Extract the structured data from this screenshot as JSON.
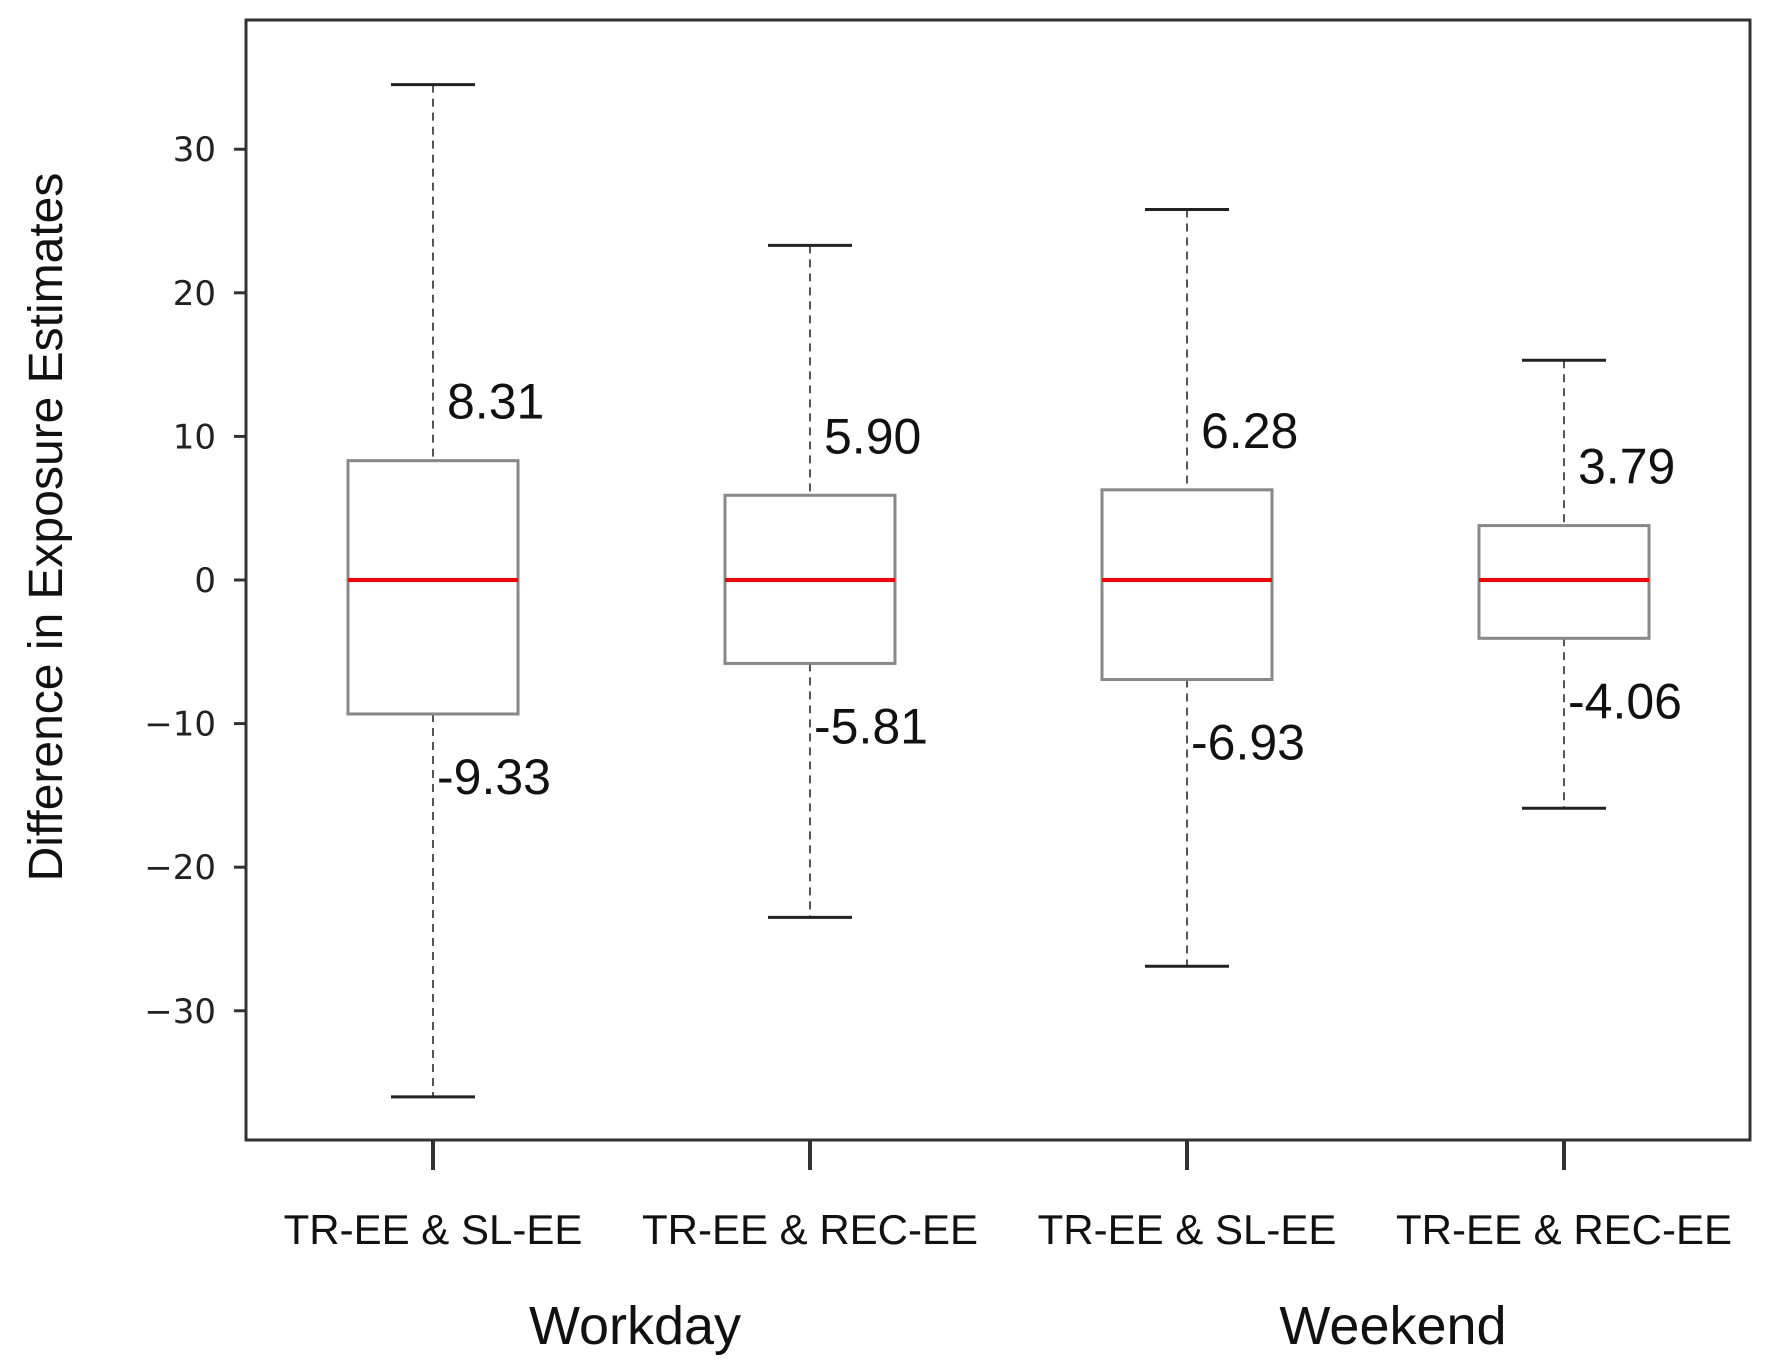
{
  "chart_data": {
    "type": "box",
    "ylabel": "Difference in Exposure Estimates",
    "ylim": [
      -39,
      39
    ],
    "yticks": [
      -30,
      -20,
      -10,
      0,
      10,
      20,
      30
    ],
    "ytick_labels": [
      "−30",
      "−20",
      "−10",
      "0",
      "10",
      "20",
      "30"
    ],
    "categories": [
      "TR-EE & SL-EE",
      "TR-EE & REC-EE",
      "TR-EE & SL-EE",
      "TR-EE & REC-EE"
    ],
    "groups": [
      "Workday",
      "Weekend"
    ],
    "boxes": [
      {
        "whisker_low": -36,
        "q1": -9.33,
        "median": 0,
        "q3": 8.31,
        "whisker_high": 34.5,
        "q3_label": "8.31",
        "q1_label": "-9.33"
      },
      {
        "whisker_low": -23.5,
        "q1": -5.81,
        "median": 0,
        "q3": 5.9,
        "whisker_high": 23.3,
        "q3_label": "5.90",
        "q1_label": "-5.81"
      },
      {
        "whisker_low": -26.9,
        "q1": -6.93,
        "median": 0,
        "q3": 6.28,
        "whisker_high": 25.8,
        "q3_label": "6.28",
        "q1_label": "-6.93"
      },
      {
        "whisker_low": -15.9,
        "q1": -4.06,
        "median": 0,
        "q3": 3.79,
        "whisker_high": 15.3,
        "q3_label": "3.79",
        "q1_label": "-4.06"
      }
    ],
    "colors": {
      "median": "#ff0000",
      "box": "#888888",
      "whisker": "#555555",
      "cap": "#222222",
      "frame": "#333333"
    }
  }
}
